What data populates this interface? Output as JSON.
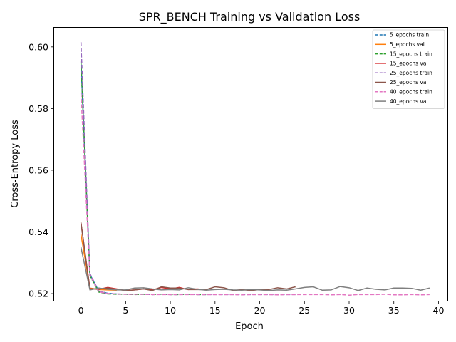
{
  "chart_data": {
    "type": "line",
    "title": "SPR_BENCH Training vs Validation Loss",
    "xlabel": "Epoch",
    "ylabel": "Cross-Entropy Loss",
    "xlim": [
      -3,
      41
    ],
    "ylim": [
      0.5177,
      0.6062
    ],
    "xticks": [
      0,
      5,
      10,
      15,
      20,
      25,
      30,
      35,
      40
    ],
    "yticks": [
      0.52,
      0.54,
      0.56,
      0.58,
      0.6
    ],
    "ytick_labels": [
      "0.52",
      "0.54",
      "0.56",
      "0.58",
      "0.60"
    ],
    "grid": false,
    "legend_position": "top-right",
    "series": [
      {
        "name": "5_epochs train",
        "color": "#1f77b4",
        "dash": true,
        "x": [
          0,
          1,
          2,
          3,
          4
        ],
        "y": [
          0.595,
          0.5262,
          0.5208,
          0.5201,
          0.5199
        ]
      },
      {
        "name": "5_epochs val",
        "color": "#ff7f0e",
        "dash": false,
        "x": [
          0,
          1,
          2,
          3,
          4
        ],
        "y": [
          0.5392,
          0.5218,
          0.5213,
          0.5212,
          0.5211
        ]
      },
      {
        "name": "15_epochs train",
        "color": "#2ca02c",
        "dash": true,
        "x": [
          0,
          1,
          2,
          3,
          4,
          5,
          6,
          7,
          8,
          9,
          10,
          11,
          12,
          13,
          14
        ],
        "y": [
          0.5955,
          0.5258,
          0.5205,
          0.5199,
          0.5198,
          0.5198,
          0.5197,
          0.5198,
          0.5197,
          0.5198,
          0.5197,
          0.5197,
          0.5198,
          0.5197,
          0.5197
        ]
      },
      {
        "name": "15_epochs val",
        "color": "#d62728",
        "dash": false,
        "x": [
          0,
          1,
          2,
          3,
          4,
          5,
          6,
          7,
          8,
          9,
          10,
          11,
          12,
          13,
          14
        ],
        "y": [
          0.543,
          0.5216,
          0.5214,
          0.522,
          0.5215,
          0.521,
          0.5212,
          0.5215,
          0.5212,
          0.522,
          0.5215,
          0.522,
          0.5213,
          0.5215,
          0.5213
        ]
      },
      {
        "name": "25_epochs train",
        "color": "#9467bd",
        "dash": true,
        "x": [
          0,
          1,
          2,
          3,
          4,
          5,
          6,
          7,
          8,
          9,
          10,
          11,
          12,
          13,
          14,
          15,
          16,
          17,
          18,
          19,
          20,
          21,
          22,
          23,
          24
        ],
        "y": [
          0.6015,
          0.5265,
          0.5208,
          0.52,
          0.5199,
          0.5198,
          0.5198,
          0.5198,
          0.5197,
          0.5198,
          0.5197,
          0.5197,
          0.5198,
          0.5197,
          0.5197,
          0.5197,
          0.5197,
          0.5197,
          0.5197,
          0.5197,
          0.5197,
          0.5197,
          0.5197,
          0.5197,
          0.5197
        ]
      },
      {
        "name": "25_epochs val",
        "color": "#8c564b",
        "dash": false,
        "x": [
          0,
          1,
          2,
          3,
          4,
          5,
          6,
          7,
          8,
          9,
          10,
          11,
          12,
          13,
          14,
          15,
          16,
          17,
          18,
          19,
          20,
          21,
          22,
          23,
          24
        ],
        "y": [
          0.543,
          0.5215,
          0.5215,
          0.5218,
          0.5214,
          0.521,
          0.5212,
          0.5215,
          0.521,
          0.5222,
          0.5218,
          0.5218,
          0.5213,
          0.5213,
          0.5213,
          0.5222,
          0.5219,
          0.521,
          0.5213,
          0.521,
          0.5213,
          0.5213,
          0.5219,
          0.5215,
          0.5222
        ]
      },
      {
        "name": "40_epochs train",
        "color": "#e377c2",
        "dash": true,
        "x": [
          0,
          1,
          2,
          3,
          4,
          5,
          6,
          7,
          8,
          9,
          10,
          11,
          12,
          13,
          14,
          15,
          16,
          17,
          18,
          19,
          20,
          21,
          22,
          23,
          24,
          25,
          26,
          27,
          28,
          29,
          30,
          31,
          32,
          33,
          34,
          35,
          36,
          37,
          38,
          39
        ],
        "y": [
          0.585,
          0.526,
          0.5206,
          0.52,
          0.5199,
          0.5198,
          0.5198,
          0.5198,
          0.5197,
          0.5197,
          0.5197,
          0.5197,
          0.5197,
          0.5197,
          0.5197,
          0.5197,
          0.5197,
          0.5197,
          0.5196,
          0.5197,
          0.5197,
          0.5197,
          0.5196,
          0.5197,
          0.5197,
          0.5197,
          0.5197,
          0.5197,
          0.5196,
          0.5197,
          0.5195,
          0.5197,
          0.5197,
          0.5197,
          0.5198,
          0.5196,
          0.5196,
          0.5197,
          0.5196,
          0.5197
        ]
      },
      {
        "name": "40_epochs val",
        "color": "#7f7f7f",
        "dash": false,
        "x": [
          0,
          1,
          2,
          3,
          4,
          5,
          6,
          7,
          8,
          9,
          10,
          11,
          12,
          13,
          14,
          15,
          16,
          17,
          18,
          19,
          20,
          21,
          22,
          23,
          24,
          25,
          26,
          27,
          28,
          29,
          30,
          31,
          32,
          33,
          34,
          35,
          36,
          37,
          38,
          39
        ],
        "y": [
          0.535,
          0.5212,
          0.5218,
          0.5214,
          0.5212,
          0.5212,
          0.5218,
          0.5219,
          0.5215,
          0.5212,
          0.5213,
          0.5212,
          0.5219,
          0.5214,
          0.5211,
          0.5213,
          0.5214,
          0.5212,
          0.5211,
          0.5213,
          0.5212,
          0.521,
          0.5212,
          0.5211,
          0.5215,
          0.522,
          0.5222,
          0.5211,
          0.5212,
          0.5223,
          0.5219,
          0.521,
          0.5218,
          0.5214,
          0.5212,
          0.5218,
          0.5218,
          0.5217,
          0.5211,
          0.5218
        ]
      }
    ]
  }
}
